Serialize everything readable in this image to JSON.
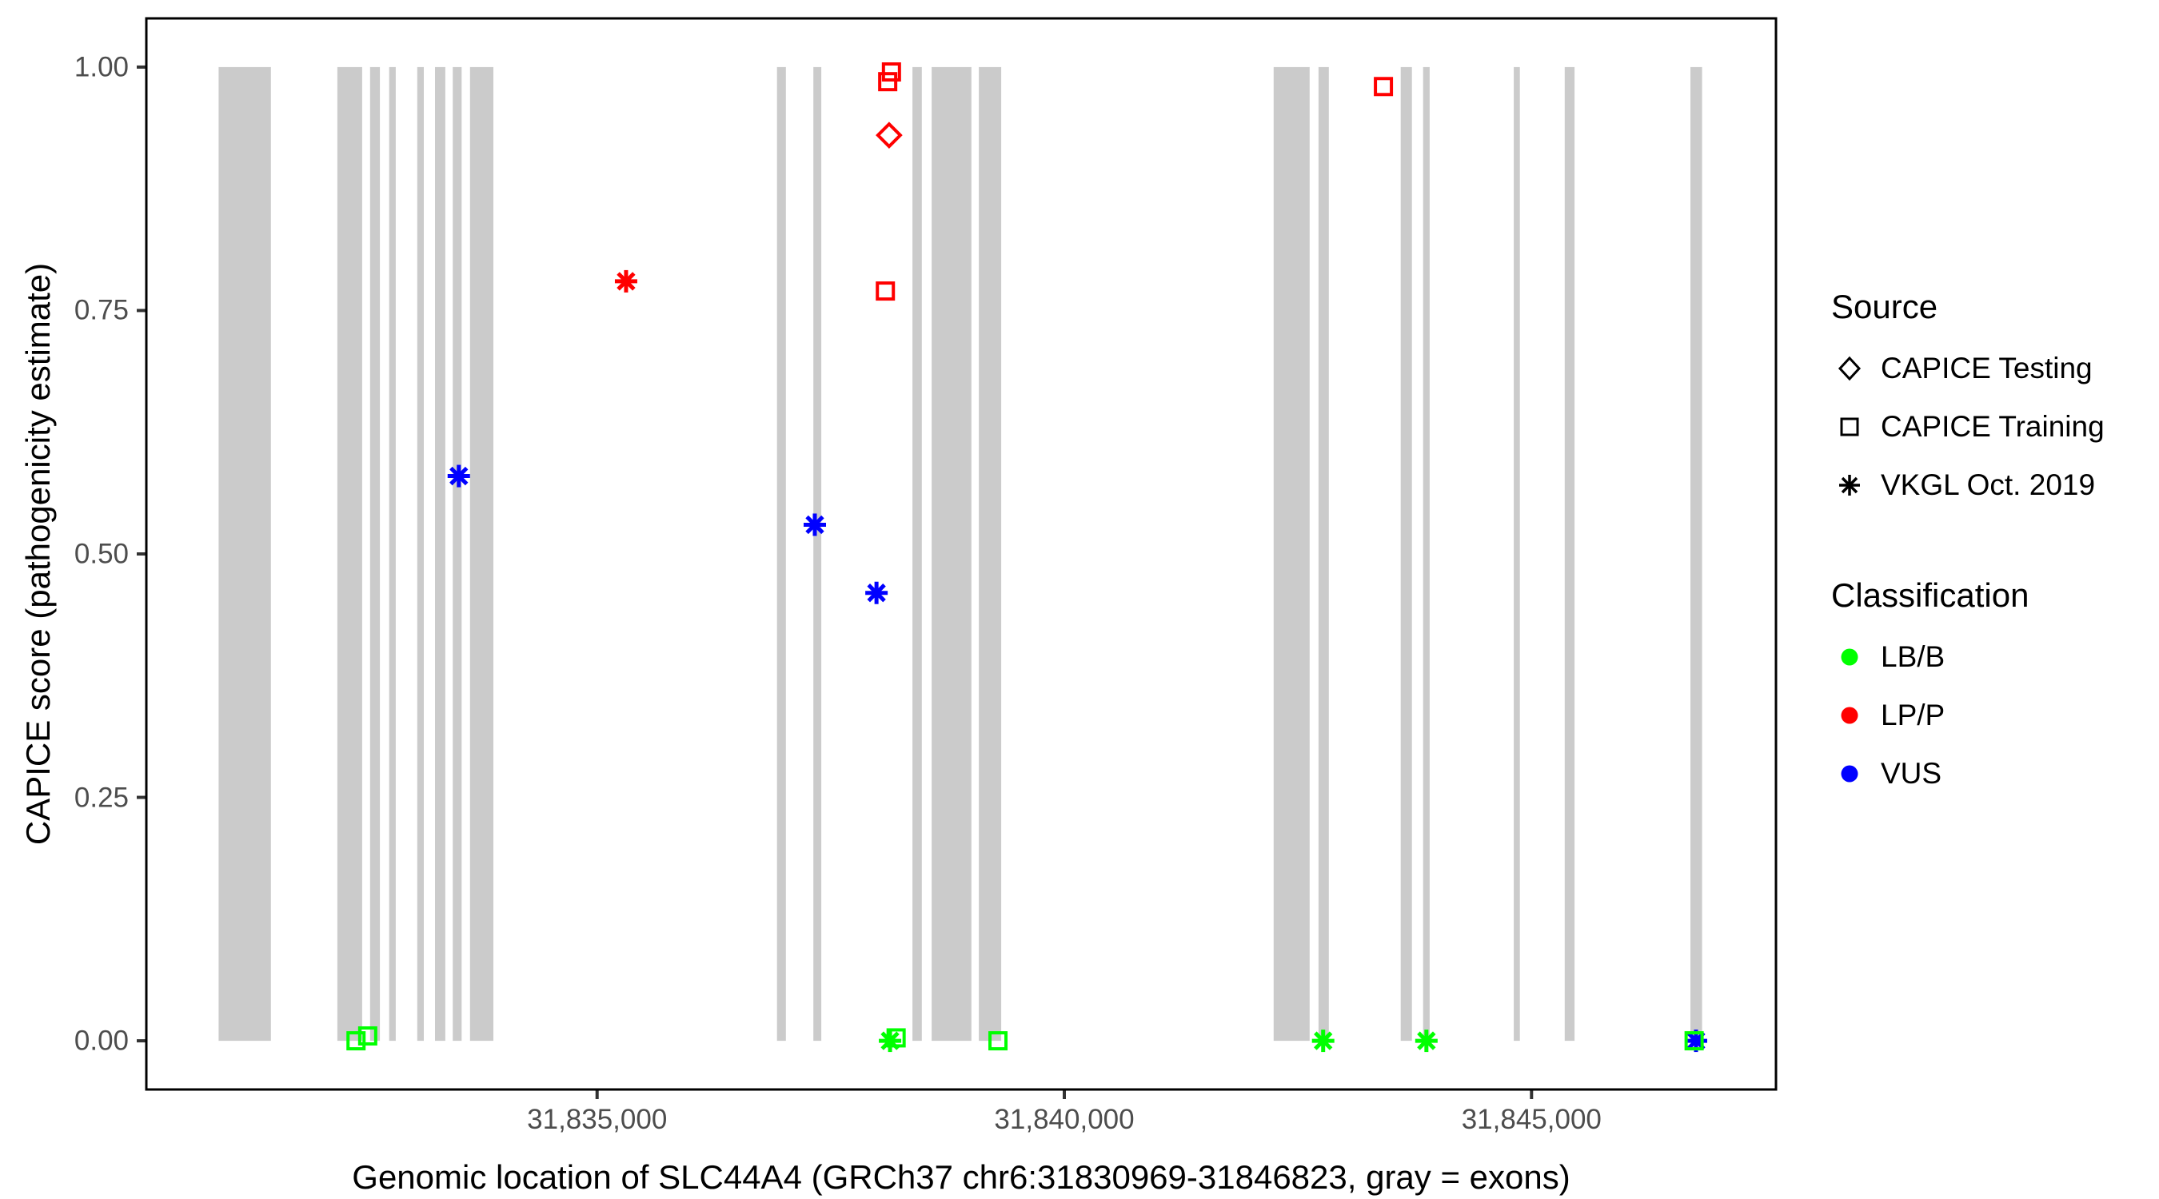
{
  "colors": {
    "background": "#FFFFFF",
    "exon": "#CBCBCB",
    "panel_border": "#000000",
    "tick_mark": "#333333",
    "tick_label": "#4D4D4D",
    "axis_title": "#000000",
    "lbb": "#00FF00",
    "lpp": "#FF0000",
    "vus": "#0000FF"
  },
  "chart_data": {
    "type": "scatter",
    "title": "",
    "xlabel": "Genomic location of SLC44A4 (GRCh37 chr6:31830969-31846823, gray = exons)",
    "ylabel": "CAPICE score (pathogenicity estimate)",
    "x_domain": [
      31830176,
      31847616
    ],
    "y_domain": [
      -0.05,
      1.05
    ],
    "grid": false,
    "legend_position": "right",
    "x_ticks": [
      {
        "value": 31835000,
        "label": "31,835,000"
      },
      {
        "value": 31840000,
        "label": "31,840,000"
      },
      {
        "value": 31845000,
        "label": "31,845,000"
      }
    ],
    "y_ticks": [
      {
        "value": 0.0,
        "label": "0.00"
      },
      {
        "value": 0.25,
        "label": "0.25"
      },
      {
        "value": 0.5,
        "label": "0.50"
      },
      {
        "value": 0.75,
        "label": "0.75"
      },
      {
        "value": 1.0,
        "label": "1.00"
      }
    ],
    "exons": [
      [
        31830950,
        31831510
      ],
      [
        31832220,
        31832485
      ],
      [
        31832570,
        31832675
      ],
      [
        31832775,
        31832845
      ],
      [
        31833075,
        31833145
      ],
      [
        31833265,
        31833375
      ],
      [
        31833455,
        31833550
      ],
      [
        31833640,
        31833890
      ],
      [
        31836925,
        31837020
      ],
      [
        31837315,
        31837400
      ],
      [
        31838375,
        31838475
      ],
      [
        31838580,
        31839005
      ],
      [
        31839085,
        31839325
      ],
      [
        31842240,
        31842625
      ],
      [
        31842720,
        31842830
      ],
      [
        31843600,
        31843720
      ],
      [
        31843840,
        31843910
      ],
      [
        31844810,
        31844875
      ],
      [
        31845355,
        31845460
      ],
      [
        31846700,
        31846825
      ]
    ],
    "points": [
      {
        "position": 31835310,
        "score": 0.78,
        "source": "VKGL Oct. 2019",
        "classification": "LP/P"
      },
      {
        "position": 31838150,
        "score": 0.995,
        "source": "CAPICE Training",
        "classification": "LP/P"
      },
      {
        "position": 31838110,
        "score": 0.985,
        "source": "CAPICE Training",
        "classification": "LP/P"
      },
      {
        "position": 31838125,
        "score": 0.93,
        "source": "CAPICE Testing",
        "classification": "LP/P"
      },
      {
        "position": 31838085,
        "score": 0.77,
        "source": "CAPICE Training",
        "classification": "LP/P"
      },
      {
        "position": 31843415,
        "score": 0.98,
        "source": "CAPICE Training",
        "classification": "LP/P"
      },
      {
        "position": 31833520,
        "score": 0.58,
        "source": "VKGL Oct. 2019",
        "classification": "VUS"
      },
      {
        "position": 31837330,
        "score": 0.53,
        "source": "VKGL Oct. 2019",
        "classification": "VUS"
      },
      {
        "position": 31837990,
        "score": 0.46,
        "source": "VKGL Oct. 2019",
        "classification": "VUS"
      },
      {
        "position": 31846760,
        "score": 0.0,
        "source": "VKGL Oct. 2019",
        "classification": "VUS"
      },
      {
        "position": 31832420,
        "score": 0.0,
        "source": "CAPICE Training",
        "classification": "LB/B"
      },
      {
        "position": 31832545,
        "score": 0.005,
        "source": "CAPICE Training",
        "classification": "LB/B"
      },
      {
        "position": 31838135,
        "score": 0.0,
        "source": "VKGL Oct. 2019",
        "classification": "LB/B"
      },
      {
        "position": 31838200,
        "score": 0.003,
        "source": "CAPICE Training",
        "classification": "LB/B"
      },
      {
        "position": 31839290,
        "score": 0.0,
        "source": "CAPICE Training",
        "classification": "LB/B"
      },
      {
        "position": 31842770,
        "score": 0.0,
        "source": "VKGL Oct. 2019",
        "classification": "LB/B"
      },
      {
        "position": 31843875,
        "score": 0.0,
        "source": "VKGL Oct. 2019",
        "classification": "LB/B"
      },
      {
        "position": 31846740,
        "score": 0.0,
        "source": "CAPICE Training",
        "classification": "LB/B"
      }
    ]
  },
  "legend": {
    "source": {
      "title": "Source",
      "items": [
        {
          "shape": "diamond",
          "label": "CAPICE Testing"
        },
        {
          "shape": "square",
          "label": "CAPICE Training"
        },
        {
          "shape": "asterisk",
          "label": "VKGL Oct. 2019"
        }
      ]
    },
    "classification": {
      "title": "Classification",
      "items": [
        {
          "color": "#00FF00",
          "label": "LB/B"
        },
        {
          "color": "#FF0000",
          "label": "LP/P"
        },
        {
          "color": "#0000FF",
          "label": "VUS"
        }
      ]
    }
  }
}
